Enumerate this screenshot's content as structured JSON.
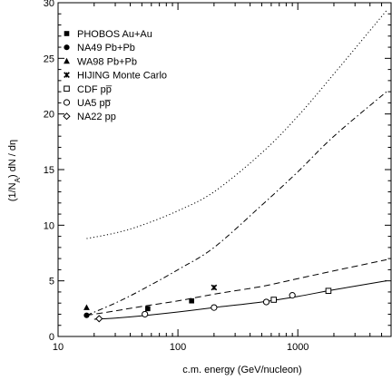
{
  "chart_data": {
    "type": "scatter",
    "title": "",
    "xlabel": "c.m. energy (GeV/nucleon)",
    "ylabel": "(1/N_A) dN / dη",
    "xscale": "log",
    "xlim": [
      10,
      6000
    ],
    "ylim": [
      0,
      30
    ],
    "xticks": [
      10,
      100,
      1000
    ],
    "xtick_labels": [
      "10",
      "100",
      "1000"
    ],
    "yticks": [
      0,
      5,
      10,
      15,
      20,
      25,
      30
    ],
    "ytick_labels": [
      "0",
      "5",
      "10",
      "15",
      "20",
      "25",
      "30"
    ],
    "grid": false,
    "legend_position": "top-left",
    "series": [
      {
        "name": "PHOBOS Au+Au",
        "marker": "filled-square",
        "x": [
          56,
          130
        ],
        "y": [
          2.5,
          3.2
        ]
      },
      {
        "name": "NA49 Pb+Pb",
        "marker": "filled-circle",
        "x": [
          17.3
        ],
        "y": [
          1.9
        ]
      },
      {
        "name": "WA98 Pb+Pb",
        "marker": "filled-triangle",
        "x": [
          17.3
        ],
        "y": [
          2.6
        ]
      },
      {
        "name": "HIJING Monte Carlo",
        "marker": "star",
        "x": [
          200
        ],
        "y": [
          4.4
        ]
      },
      {
        "name": "CDF pp̅",
        "marker": "open-square",
        "x": [
          630,
          1800
        ],
        "y": [
          3.3,
          4.1
        ]
      },
      {
        "name": "UA5 pp̅",
        "marker": "open-circle",
        "x": [
          53,
          200,
          546,
          900
        ],
        "y": [
          2.0,
          2.6,
          3.1,
          3.7
        ]
      },
      {
        "name": "NA22 pp",
        "marker": "open-diamond",
        "x": [
          22
        ],
        "y": [
          1.6
        ]
      }
    ],
    "curves": [
      {
        "style": "dotted",
        "x": [
          17.3,
          30,
          50,
          100,
          200,
          500,
          1000,
          2000,
          5500
        ],
        "y": [
          8.8,
          9.3,
          10.0,
          11.3,
          13.0,
          16.5,
          19.8,
          23.6,
          29.3
        ]
      },
      {
        "style": "dash-dot",
        "x": [
          17.3,
          30,
          50,
          100,
          200,
          500,
          1000,
          2000,
          5500
        ],
        "y": [
          1.9,
          3.0,
          4.2,
          6.0,
          8.0,
          11.8,
          14.8,
          18.0,
          22.0
        ]
      },
      {
        "style": "dashed",
        "x": [
          17.3,
          30,
          50,
          100,
          200,
          500,
          1000,
          2000,
          5500
        ],
        "y": [
          1.9,
          2.3,
          2.7,
          3.2,
          3.8,
          4.5,
          5.2,
          5.9,
          6.9
        ]
      },
      {
        "style": "solid",
        "x": [
          20,
          30,
          50,
          100,
          200,
          500,
          1000,
          2000,
          5500
        ],
        "y": [
          1.55,
          1.65,
          1.85,
          2.2,
          2.6,
          3.1,
          3.6,
          4.2,
          5.0
        ]
      }
    ]
  }
}
